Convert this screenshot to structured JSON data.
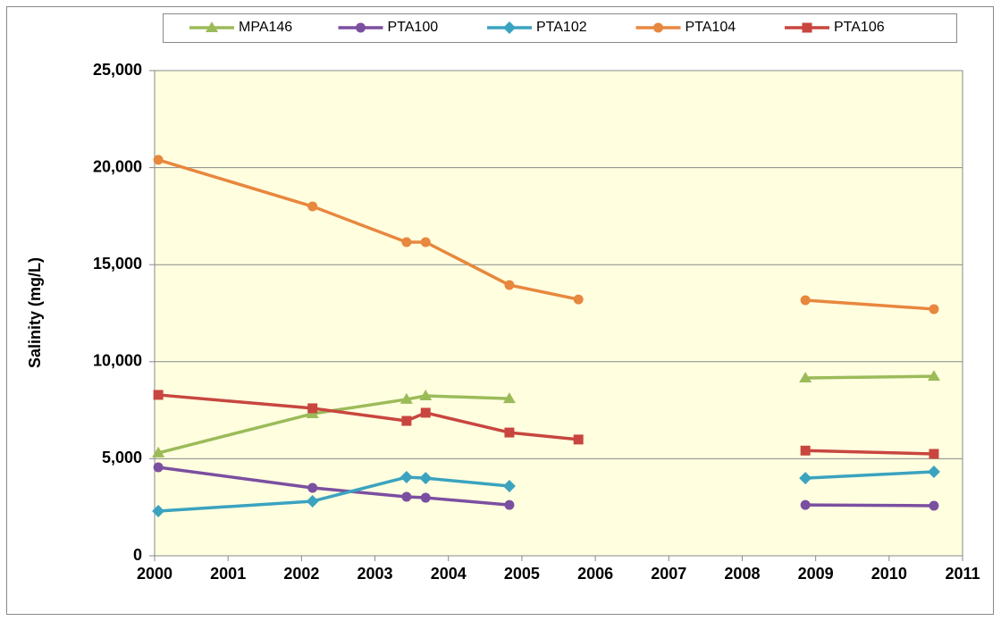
{
  "chart_data": {
    "type": "line",
    "ylabel": "Salinity (mg/L)",
    "xlim": [
      2000,
      2011
    ],
    "xticks": [
      2000,
      2001,
      2002,
      2003,
      2004,
      2005,
      2006,
      2007,
      2008,
      2009,
      2010,
      2011
    ],
    "ylim": [
      0,
      25000
    ],
    "yticks": [
      0,
      {
        "value": 5000,
        "label": "5,000"
      },
      {
        "value": 10000,
        "label": "10,000"
      },
      {
        "value": 15000,
        "label": "15,000"
      },
      {
        "value": 20000,
        "label": "20,000"
      },
      {
        "value": 25000,
        "label": "25,000"
      }
    ],
    "grid": true,
    "legend": "top",
    "plot_background": "#ffffe0",
    "series": [
      {
        "name": "MPA146",
        "color": "#9bbb59",
        "marker": "triangle",
        "x": [
          2000.05,
          2002.15,
          2003.43,
          2003.69,
          2004.83,
          null,
          2008.86,
          2010.61
        ],
        "values": [
          5300,
          7320,
          8060,
          8240,
          8100,
          null,
          9160,
          9250
        ]
      },
      {
        "name": "PTA100",
        "color": "#7b4fa0",
        "marker": "circle",
        "x": [
          2000.05,
          2002.15,
          2003.43,
          2003.69,
          2004.83,
          null,
          2008.86,
          2010.61
        ],
        "values": [
          4560,
          3500,
          3040,
          2990,
          2620,
          null,
          2620,
          2580
        ]
      },
      {
        "name": "PTA102",
        "color": "#3ba3bf",
        "marker": "diamond",
        "x": [
          2000.05,
          2002.15,
          2003.43,
          2003.69,
          2004.83,
          null,
          2008.86,
          2010.61
        ],
        "values": [
          2300,
          2810,
          4050,
          4000,
          3590,
          null,
          4000,
          4330
        ]
      },
      {
        "name": "PTA104",
        "color": "#e8873e",
        "marker": "circle",
        "x": [
          2000.05,
          2002.15,
          2003.43,
          2003.69,
          2004.83,
          2005.77,
          null,
          2008.86,
          2010.61
        ],
        "values": [
          20400,
          18000,
          16160,
          16160,
          13950,
          13210,
          null,
          13170,
          12710
        ]
      },
      {
        "name": "PTA106",
        "color": "#c8463f",
        "marker": "square",
        "x": [
          2000.05,
          2002.15,
          2003.43,
          2003.69,
          2004.83,
          2005.77,
          null,
          2008.86,
          2010.61
        ],
        "values": [
          8290,
          7600,
          6950,
          7370,
          6350,
          5990,
          null,
          5420,
          5250
        ]
      }
    ]
  }
}
